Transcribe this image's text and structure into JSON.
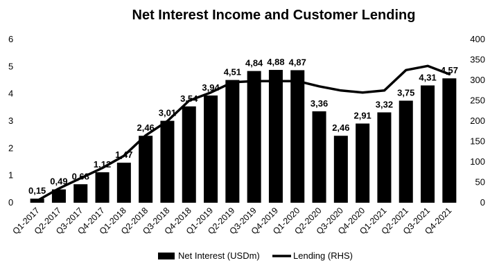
{
  "chart_data": {
    "type": "bar",
    "title": "Net Interest Income and Customer Lending",
    "categories": [
      "Q1-2017",
      "Q2-2017",
      "Q3-2017",
      "Q4-2017",
      "Q1-2018",
      "Q2-2018",
      "Q3-2018",
      "Q4-2018",
      "Q1-2019",
      "Q2-2019",
      "Q3-2019",
      "Q4-2019",
      "Q1-2020",
      "Q2-2020",
      "Q3-2020",
      "Q4-2020",
      "Q1-2021",
      "Q2-2021",
      "Q3-2021",
      "Q4-2021"
    ],
    "series": [
      {
        "name": "Net Interest (USDm)",
        "type": "bar",
        "axis": "left",
        "color": "#000000",
        "values": [
          0.15,
          0.49,
          0.68,
          1.12,
          1.47,
          2.46,
          3.01,
          3.54,
          3.94,
          4.51,
          4.84,
          4.88,
          4.87,
          3.36,
          2.46,
          2.91,
          3.32,
          3.75,
          4.31,
          4.57
        ],
        "labels": [
          "0,15",
          "0,49",
          "0,68",
          "1,12",
          "1,47",
          "2,46",
          "3,01",
          "3,54",
          "3,94",
          "4,51",
          "4,84",
          "4,88",
          "4,87",
          "3,36",
          "2,46",
          "2,91",
          "3,32",
          "3,75",
          "4,31",
          "4,57"
        ]
      },
      {
        "name": "Lending (RHS)",
        "type": "line",
        "axis": "right",
        "color": "#000000",
        "values": [
          5,
          35,
          60,
          85,
          115,
          165,
          200,
          250,
          270,
          295,
          298,
          298,
          298,
          285,
          275,
          270,
          275,
          325,
          335,
          315
        ]
      }
    ],
    "y_left": {
      "ylim": [
        0,
        6
      ],
      "ticks": [
        0,
        1,
        2,
        3,
        4,
        5,
        6
      ]
    },
    "y_right": {
      "ylim": [
        0,
        400
      ],
      "ticks": [
        0,
        50,
        100,
        150,
        200,
        250,
        300,
        350,
        400
      ]
    },
    "grid": false,
    "legend": "bottom-center"
  }
}
